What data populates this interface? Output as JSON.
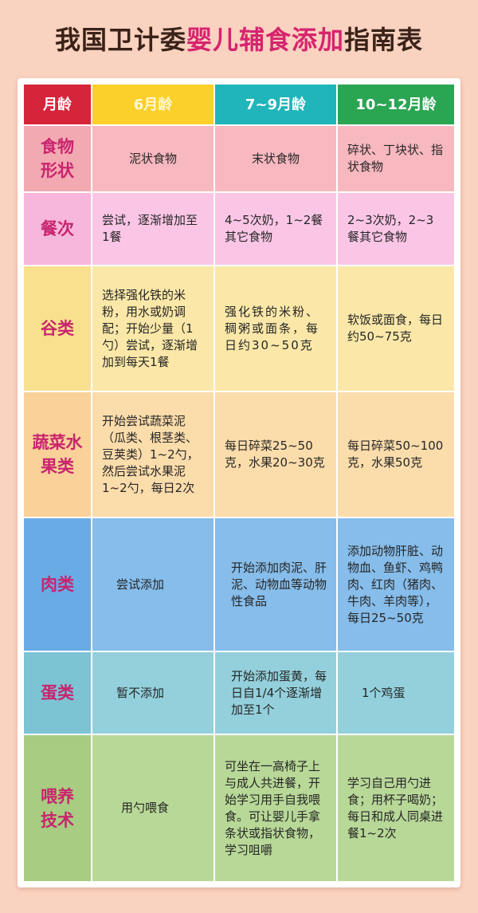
{
  "title": {
    "part_a": "我国卫计委",
    "part_b": "婴儿辅食添加",
    "part_c": "指南表"
  },
  "headers": [
    "月龄",
    "6月龄",
    "7~9月龄",
    "10~12月龄"
  ],
  "rows": [
    {
      "label": "食物形状",
      "cells": [
        "泥状食物",
        "末状食物",
        "碎状、丁块状、指状食物"
      ]
    },
    {
      "label": "餐次",
      "cells": [
        "尝试，逐渐增加至1餐",
        "4~5次奶，1~2餐其它食物",
        "2~3次奶，2~3餐其它食物"
      ]
    },
    {
      "label": "谷类",
      "cells": [
        "选择强化铁的米粉，用水或奶调配；开始少量（1勺）尝试，逐渐增加到每天1餐",
        "强化铁的米粉、稠粥或面条，每日约30~50克",
        "软饭或面食，每日约50~75克"
      ]
    },
    {
      "label": "蔬菜水果类",
      "cells": [
        "开始尝试蔬菜泥（瓜类、根茎类、豆荚类）1~2勺，然后尝试水果泥1~2勺，每日2次",
        "每日碎菜25~50克，水果20~30克",
        "每日碎菜50~100克，水果50克"
      ]
    },
    {
      "label": "肉类",
      "cells": [
        "尝试添加",
        "开始添加肉泥、肝泥、动物血等动物性食品",
        "添加动物肝脏、动物血、鱼虾、鸡鸭肉、红肉（猪肉、牛肉、羊肉等），每日25~50克"
      ]
    },
    {
      "label": "蛋类",
      "cells": [
        "暂不添加",
        "开始添加蛋黄，每日自1/4个逐渐增加至1个",
        "1个鸡蛋"
      ]
    },
    {
      "label": "喂养技术",
      "cells": [
        "用勺喂食",
        "可坐在一高椅子上与成人共进餐，开始学习用手自我喂食。可让婴儿手拿条状或指状食物，学习咀嚼",
        "学习自己用勺进食；用杯子喝奶；每日和成人同桌进餐1~2次"
      ]
    }
  ],
  "colors": {
    "header": [
      "#d6243b",
      "#fbd02a",
      "#1fb5ba",
      "#2aa552"
    ],
    "row_label": [
      "#f3a9b2",
      "#f7b6dc",
      "#f9e08f",
      "#f9d199",
      "#69abe5",
      "#7cc3d4",
      "#a8cc82"
    ],
    "row_cells": [
      "#f7b8bf",
      "#fbc6e6",
      "#fbe8a8",
      "#fbdcab",
      "#86bdeb",
      "#93d0dc",
      "#b8d898"
    ],
    "title_dark": "#3a2218",
    "title_pink": "#d6246e",
    "label_text": "#c9246e"
  }
}
